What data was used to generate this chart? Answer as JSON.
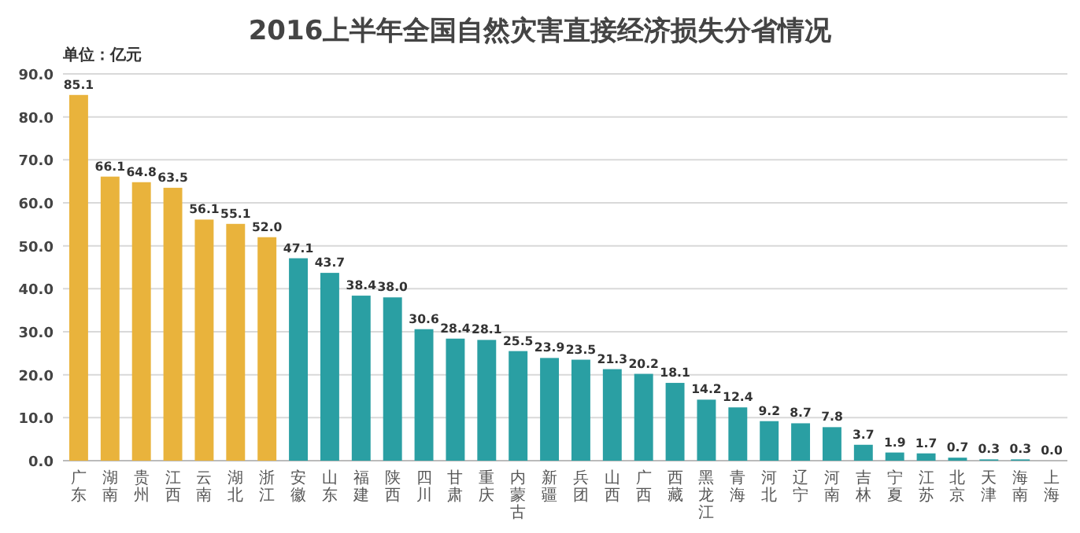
{
  "chart_data": {
    "type": "bar",
    "title": "2016上半年全国自然灾害直接经济损失分省情况",
    "ylabel": "单位：亿元",
    "categories": [
      "广东",
      "湖南",
      "贵州",
      "江西",
      "云南",
      "湖北",
      "浙江",
      "安徽",
      "山东",
      "福建",
      "陕西",
      "四川",
      "甘肃",
      "重庆",
      "内蒙古",
      "新疆",
      "兵团",
      "山西",
      "广西",
      "西藏",
      "黑龙江",
      "青海",
      "河北",
      "辽宁",
      "河南",
      "吉林",
      "宁夏",
      "江苏",
      "北京",
      "天津",
      "海南",
      "上海"
    ],
    "values": [
      85.1,
      66.1,
      64.8,
      63.5,
      56.1,
      55.1,
      52.0,
      47.1,
      43.7,
      38.4,
      38.0,
      30.6,
      28.4,
      28.1,
      25.5,
      23.9,
      23.5,
      21.3,
      20.2,
      18.1,
      14.2,
      12.4,
      9.2,
      8.7,
      7.8,
      3.7,
      1.9,
      1.7,
      0.7,
      0.3,
      0.3,
      0.0
    ],
    "value_labels": [
      "85.1",
      "66.1",
      "64.8",
      "63.5",
      "56.1",
      "55.1",
      "52.0",
      "47.1",
      "43.7",
      "38.4",
      "38.0",
      "30.6",
      "28.4",
      "28.1",
      "25.5",
      "23.9",
      "23.5",
      "21.3",
      "20.2",
      "18.1",
      "14.2",
      "12.4",
      "9.2",
      "8.7",
      "7.8",
      "3.7",
      "1.9",
      "1.7",
      "0.7",
      "0.3",
      "0.3",
      "0.0"
    ],
    "colors": [
      "#e9b33c",
      "#e9b33c",
      "#e9b33c",
      "#e9b33c",
      "#e9b33c",
      "#e9b33c",
      "#e9b33c",
      "#2a9fa3",
      "#2a9fa3",
      "#2a9fa3",
      "#2a9fa3",
      "#2a9fa3",
      "#2a9fa3",
      "#2a9fa3",
      "#2a9fa3",
      "#2a9fa3",
      "#2a9fa3",
      "#2a9fa3",
      "#2a9fa3",
      "#2a9fa3",
      "#2a9fa3",
      "#2a9fa3",
      "#2a9fa3",
      "#2a9fa3",
      "#2a9fa3",
      "#2a9fa3",
      "#2a9fa3",
      "#2a9fa3",
      "#2a9fa3",
      "#2a9fa3",
      "#2a9fa3",
      "#2a9fa3"
    ],
    "ylim": [
      0,
      90
    ],
    "yticks": [
      {
        "value": 0,
        "label": "0.0"
      },
      {
        "value": 10,
        "label": "10.0"
      },
      {
        "value": 20,
        "label": "20.0"
      },
      {
        "value": 30,
        "label": "30.0"
      },
      {
        "value": 40,
        "label": "40.0"
      },
      {
        "value": 50,
        "label": "50.0"
      },
      {
        "value": 60,
        "label": "60.0"
      },
      {
        "value": 70,
        "label": "70.0"
      },
      {
        "value": 80,
        "label": "80.0"
      },
      {
        "value": 90,
        "label": "90.0"
      }
    ],
    "grid": "y"
  }
}
